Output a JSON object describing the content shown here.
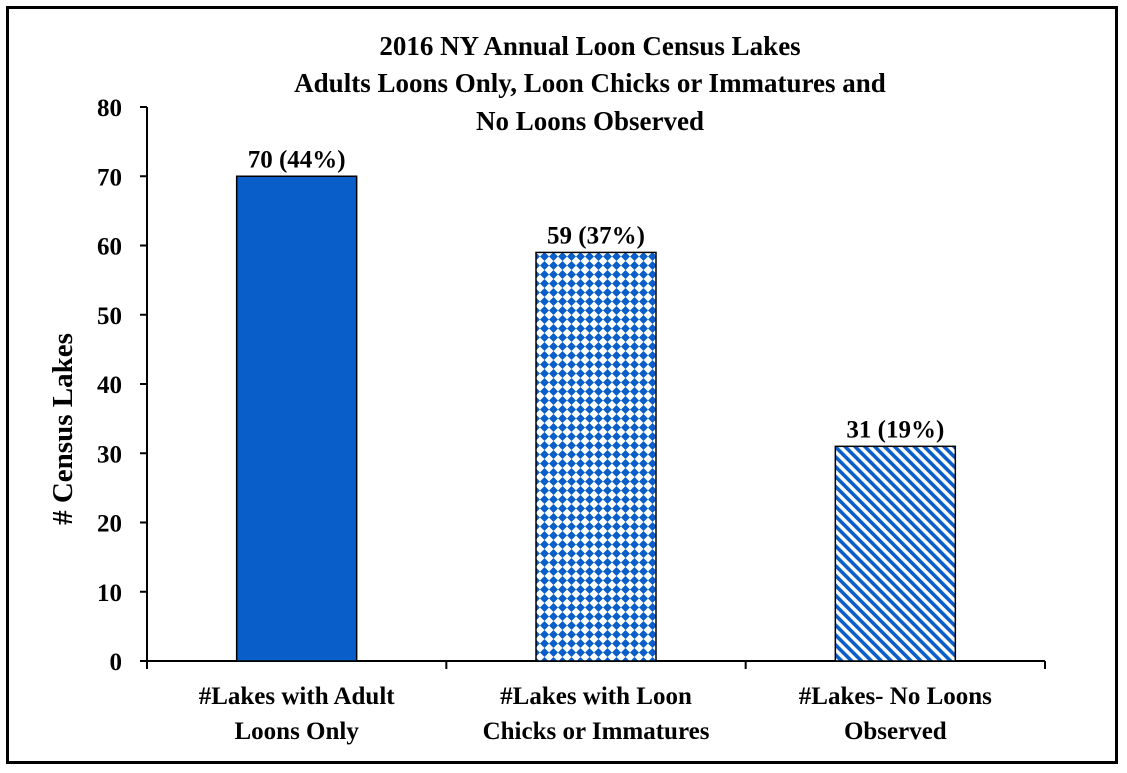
{
  "chart_data": {
    "type": "bar",
    "title_lines": [
      "2016 NY Annual Loon Census Lakes",
      "Adults Loons Only, Loon Chicks or Immatures and",
      "No Loons Observed"
    ],
    "ylabel": "# Census Lakes",
    "xlabel": "",
    "ylim": [
      0,
      80
    ],
    "yticks": [
      0,
      10,
      20,
      30,
      40,
      50,
      60,
      70,
      80
    ],
    "grid": false,
    "legend": "none",
    "categories": [
      [
        "#Lakes with Adult",
        "Loons Only"
      ],
      [
        "#Lakes with Loon",
        "Chicks or Immatures"
      ],
      [
        "#Lakes- No Loons",
        "Observed"
      ]
    ],
    "values": [
      70,
      59,
      31
    ],
    "data_labels": [
      "70 (44%)",
      "59 (37%)",
      "31 (19%)"
    ],
    "bar_styles": [
      "solid",
      "diamond-checker",
      "diagonal-stripes"
    ],
    "colors": {
      "bar": "#0a5ec9",
      "outline": "#000000"
    }
  }
}
